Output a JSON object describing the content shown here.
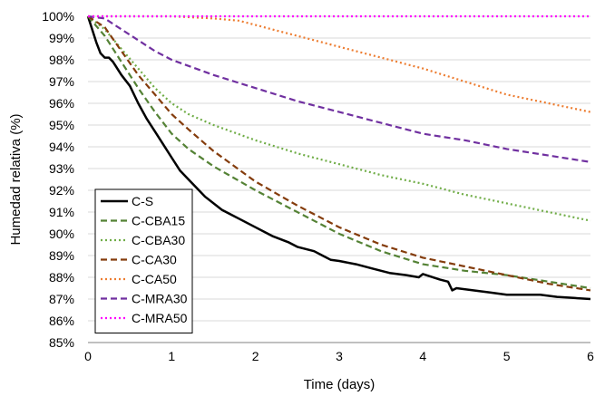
{
  "chart_data": {
    "type": "line",
    "title": "",
    "xlabel": "Time (days)",
    "ylabel": "Humedad relativa (%)",
    "xlim": [
      0,
      6
    ],
    "ylim": [
      85,
      100
    ],
    "x_ticks": [
      {
        "value": 0,
        "label": "0"
      },
      {
        "value": 1,
        "label": "1"
      },
      {
        "value": 2,
        "label": "2"
      },
      {
        "value": 3,
        "label": "3"
      },
      {
        "value": 4,
        "label": "4"
      },
      {
        "value": 5,
        "label": "5"
      },
      {
        "value": 6,
        "label": "6"
      }
    ],
    "y_ticks": [
      {
        "value": 85,
        "label": "85%"
      },
      {
        "value": 86,
        "label": "86%"
      },
      {
        "value": 87,
        "label": "87%"
      },
      {
        "value": 88,
        "label": "88%"
      },
      {
        "value": 89,
        "label": "89%"
      },
      {
        "value": 90,
        "label": "90%"
      },
      {
        "value": 91,
        "label": "91%"
      },
      {
        "value": 92,
        "label": "92%"
      },
      {
        "value": 93,
        "label": "93%"
      },
      {
        "value": 94,
        "label": "94%"
      },
      {
        "value": 95,
        "label": "95%"
      },
      {
        "value": 96,
        "label": "96%"
      },
      {
        "value": 97,
        "label": "97%"
      },
      {
        "value": 98,
        "label": "98%"
      },
      {
        "value": 99,
        "label": "99%"
      },
      {
        "value": 100,
        "label": "100%"
      }
    ],
    "grid": "horizontal",
    "legend_position": "bottom-left",
    "series": [
      {
        "name": "C-S",
        "color": "#000000",
        "style": "solid",
        "x": [
          0,
          0.1,
          0.15,
          0.2,
          0.25,
          0.3,
          0.4,
          0.5,
          0.6,
          0.7,
          0.8,
          0.9,
          1.0,
          1.1,
          1.2,
          1.4,
          1.6,
          1.8,
          2.0,
          2.2,
          2.4,
          2.5,
          2.6,
          2.7,
          2.8,
          2.9,
          3.0,
          3.2,
          3.4,
          3.6,
          3.8,
          3.95,
          4.0,
          4.2,
          4.3,
          4.35,
          4.4,
          4.6,
          4.8,
          5.0,
          5.2,
          5.4,
          5.6,
          5.8,
          6.0
        ],
        "y": [
          100,
          98.8,
          98.3,
          98.1,
          98.1,
          97.9,
          97.3,
          96.8,
          96.0,
          95.3,
          94.7,
          94.1,
          93.5,
          92.9,
          92.5,
          91.7,
          91.1,
          90.7,
          90.3,
          89.9,
          89.6,
          89.4,
          89.3,
          89.2,
          89.0,
          88.8,
          88.75,
          88.6,
          88.4,
          88.2,
          88.1,
          88.0,
          88.15,
          87.9,
          87.8,
          87.4,
          87.5,
          87.4,
          87.3,
          87.2,
          87.2,
          87.2,
          87.1,
          87.05,
          87.0
        ]
      },
      {
        "name": "C-CBA15",
        "color": "#548235",
        "style": "dashed",
        "x": [
          0,
          0.2,
          0.4,
          0.6,
          0.8,
          1.0,
          1.2,
          1.5,
          2.0,
          2.5,
          3.0,
          3.5,
          4.0,
          4.5,
          5.0,
          5.5,
          6.0
        ],
        "y": [
          100,
          99.1,
          97.9,
          96.7,
          95.6,
          94.6,
          93.9,
          93.1,
          92.0,
          91.0,
          90.0,
          89.2,
          88.6,
          88.3,
          88.1,
          87.8,
          87.5
        ]
      },
      {
        "name": "C-CBA30",
        "color": "#70ad47",
        "style": "dotted",
        "x": [
          0,
          0.2,
          0.4,
          0.6,
          0.8,
          1.0,
          1.2,
          1.5,
          2.0,
          2.5,
          3.0,
          3.5,
          4.0,
          4.5,
          5.0,
          5.5,
          6.0
        ],
        "y": [
          100,
          99.4,
          98.5,
          97.6,
          96.7,
          96.0,
          95.5,
          95.0,
          94.3,
          93.7,
          93.2,
          92.7,
          92.3,
          91.8,
          91.4,
          91.0,
          90.6
        ]
      },
      {
        "name": "C-CA30",
        "color": "#843c0c",
        "style": "dashed",
        "x": [
          0,
          0.2,
          0.4,
          0.6,
          0.8,
          1.0,
          1.2,
          1.5,
          2.0,
          2.5,
          3.0,
          3.5,
          4.0,
          4.5,
          5.0,
          5.5,
          6.0
        ],
        "y": [
          100,
          99.5,
          98.4,
          97.3,
          96.4,
          95.5,
          94.8,
          93.8,
          92.4,
          91.3,
          90.3,
          89.5,
          88.9,
          88.5,
          88.1,
          87.7,
          87.4
        ]
      },
      {
        "name": "C-CA50",
        "color": "#ed7d31",
        "style": "dotted",
        "x": [
          0,
          1.0,
          1.5,
          1.8,
          2.0,
          2.5,
          3.0,
          3.5,
          4.0,
          4.5,
          5.0,
          5.5,
          6.0
        ],
        "y": [
          100,
          100,
          99.9,
          99.8,
          99.6,
          99.1,
          98.6,
          98.1,
          97.6,
          97.0,
          96.4,
          96.0,
          95.6
        ]
      },
      {
        "name": "C-MRA30",
        "color": "#7030a0",
        "style": "dashed",
        "x": [
          0,
          0.2,
          0.4,
          0.6,
          0.8,
          1.0,
          1.5,
          2.0,
          2.5,
          3.0,
          3.5,
          4.0,
          4.5,
          5.0,
          5.5,
          6.0
        ],
        "y": [
          100,
          99.9,
          99.4,
          98.9,
          98.4,
          98.0,
          97.3,
          96.7,
          96.1,
          95.6,
          95.1,
          94.6,
          94.3,
          93.9,
          93.6,
          93.3
        ]
      },
      {
        "name": "C-MRA50",
        "color": "#ff00ff",
        "style": "dotted",
        "x": [
          0,
          1,
          2,
          3,
          4,
          5,
          6
        ],
        "y": [
          100,
          100,
          100,
          100,
          100,
          100,
          100
        ]
      }
    ]
  }
}
